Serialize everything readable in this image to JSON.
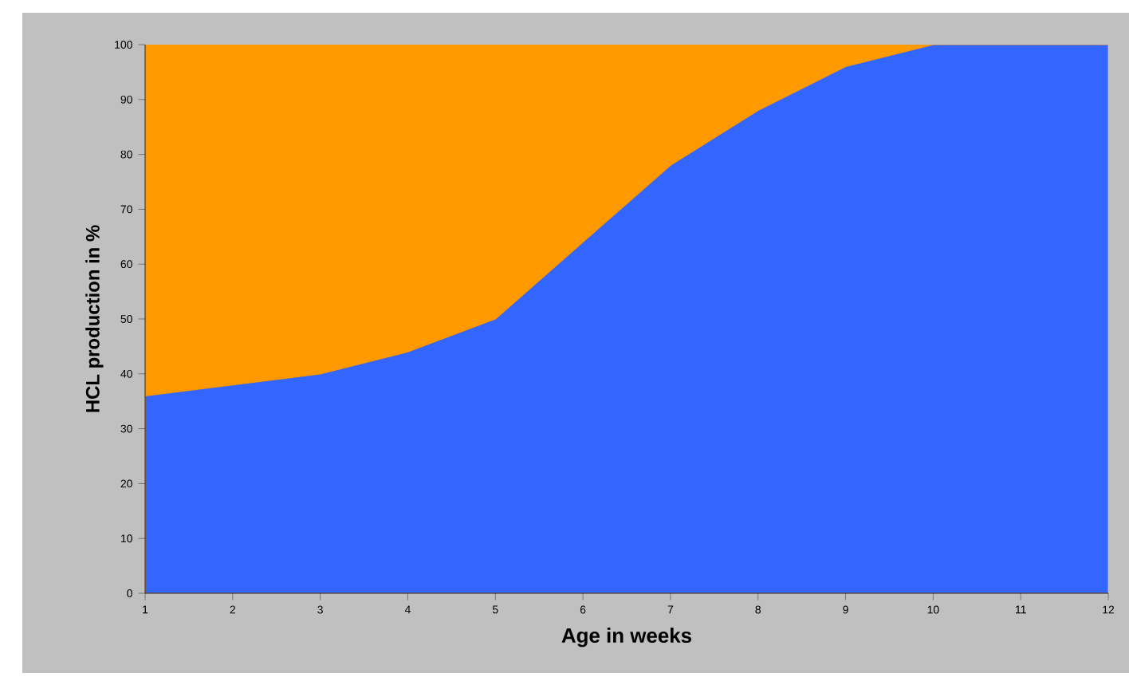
{
  "chart_data": {
    "type": "area",
    "stacked": true,
    "xlabel": "Age in weeks",
    "ylabel": "HCL production in %",
    "x": [
      1,
      2,
      3,
      4,
      5,
      6,
      7,
      8,
      9,
      10,
      11,
      12
    ],
    "series": [
      {
        "color": "#3366ff",
        "values": [
          36,
          38,
          40,
          44,
          50,
          64,
          78,
          88,
          96,
          100,
          100,
          100
        ]
      },
      {
        "color": "#ff9900",
        "values": [
          64,
          62,
          60,
          56,
          50,
          36,
          22,
          12,
          4,
          0,
          0,
          0
        ]
      }
    ],
    "xlim": [
      1,
      12
    ],
    "ylim": [
      0,
      100
    ],
    "xticks": [
      1,
      2,
      3,
      4,
      5,
      6,
      7,
      8,
      9,
      10,
      11,
      12
    ],
    "yticks": [
      0,
      10,
      20,
      30,
      40,
      50,
      60,
      70,
      80,
      90,
      100
    ],
    "marker": "none"
  }
}
